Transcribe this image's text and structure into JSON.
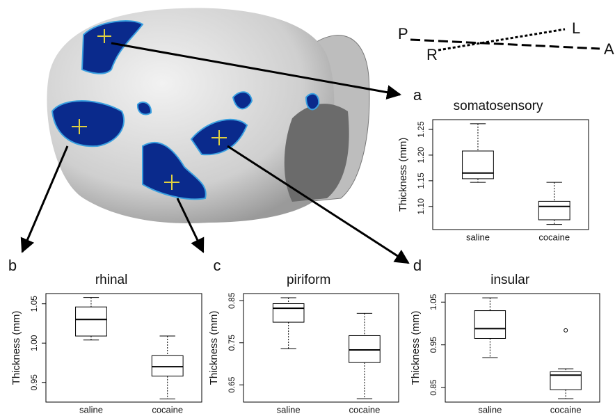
{
  "panel_labels": {
    "a": "a",
    "b": "b",
    "c": "c",
    "d": "d"
  },
  "orientation": {
    "P": "P",
    "A": "A",
    "L": "L",
    "R": "R"
  },
  "chart_data": [
    {
      "type": "box",
      "title": "somatosensory",
      "y_label": "Thickness (mm)",
      "categories": [
        "saline",
        "cocaine"
      ],
      "boxes": [
        {
          "whisker_low": 1.147,
          "q1": 1.154,
          "median": 1.165,
          "q3": 1.208,
          "whisker_high": 1.261
        },
        {
          "whisker_low": 1.065,
          "q1": 1.074,
          "median": 1.1,
          "q3": 1.11,
          "whisker_high": 1.147
        }
      ],
      "ylim": [
        1.055,
        1.269
      ],
      "yticks": [
        {
          "value": 1.1,
          "label": "1.10"
        },
        1.15,
        {
          "value": 1.2,
          "label": "1.20"
        },
        1.25
      ]
    },
    {
      "type": "box",
      "title": "rhinal",
      "y_label": "Thickness (mm)",
      "categories": [
        "saline",
        "cocaine"
      ],
      "boxes": [
        {
          "whisker_low": 1.004,
          "q1": 1.009,
          "median": 1.03,
          "q3": 1.046,
          "whisker_high": 1.058
        },
        {
          "whisker_low": 0.929,
          "q1": 0.958,
          "median": 0.97,
          "q3": 0.984,
          "whisker_high": 1.009
        }
      ],
      "ylim": [
        0.925,
        1.063
      ],
      "yticks": [
        0.95,
        {
          "value": 1.0,
          "label": "1.00"
        },
        1.05
      ]
    },
    {
      "type": "box",
      "title": "piriform",
      "y_label": "Thickness (mm)",
      "categories": [
        "saline",
        "cocaine"
      ],
      "boxes": [
        {
          "whisker_low": 0.736,
          "q1": 0.799,
          "median": 0.832,
          "q3": 0.843,
          "whisker_high": 0.857
        },
        {
          "whisker_low": 0.617,
          "q1": 0.703,
          "median": 0.733,
          "q3": 0.767,
          "whisker_high": 0.82
        }
      ],
      "ylim": [
        0.609,
        0.867
      ],
      "yticks": [
        0.65,
        0.75,
        0.85
      ]
    },
    {
      "type": "box",
      "title": "insular",
      "y_label": "Thickness (mm)",
      "categories": [
        "saline",
        "cocaine"
      ],
      "boxes": [
        {
          "whisker_low": 0.92,
          "q1": 0.965,
          "median": 0.988,
          "q3": 1.03,
          "whisker_high": 1.06
        },
        {
          "whisker_low": 0.824,
          "q1": 0.845,
          "median": 0.879,
          "q3": 0.887,
          "whisker_high": 0.894,
          "outliers": [
            0.984
          ]
        }
      ],
      "ylim": [
        0.816,
        1.07
      ],
      "yticks": [
        0.85,
        0.95,
        1.05
      ]
    }
  ]
}
